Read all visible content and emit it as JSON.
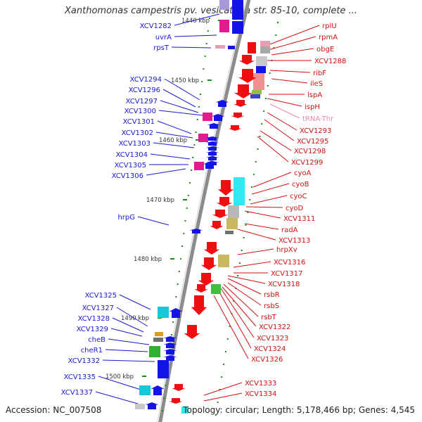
{
  "title": "Xanthomonas campestris pv. vesicatoria str. 85-10, complete ...",
  "accession": "Accession: NC_007508",
  "topology": "Topology: circular; Length: 5,178,466 bp; Genes: 4,545",
  "colors": {
    "left_label": "#1a1ad0",
    "right_label": "#d41010",
    "trna_label": "#e88aa8",
    "left_arrow": "#1414e6",
    "right_arrow": "#ee1010",
    "tick": "#1a8a1a",
    "axis": "#8c8c8c"
  },
  "scale_labels": [
    "1440 kbp",
    "1450 kbp",
    "1460 kbp",
    "1470 kbp",
    "1480 kbp",
    "1490 kbp",
    "1500 kbp"
  ],
  "left_genes": [
    "XCV1282",
    "uvrA",
    "rpsT",
    "XCV1294",
    "XCV1296",
    "XCV1297",
    "XCV1300",
    "XCV1301",
    "XCV1302",
    "XCV1303",
    "XCV1304",
    "XCV1305",
    "XCV1306",
    "hrpG",
    "XCV1325",
    "XCV1327",
    "XCV1328",
    "XCV1329",
    "cheB",
    "cheR1",
    "XCV1332",
    "XCV1335",
    "XCV1337"
  ],
  "right_genes": [
    "rplU",
    "rpmA",
    "obgE",
    "XCV1288",
    "ribF",
    "ileS",
    "lspA",
    "ispH",
    "tRNA-Thr",
    "XCV1293",
    "XCV1295",
    "XCV1298",
    "XCV1299",
    "cyoA",
    "cyoB",
    "cyoC",
    "cyoD",
    "XCV1311",
    "radA",
    "XCV1313",
    "hrpXv",
    "XCV1316",
    "XCV1317",
    "XCV1318",
    "rsbR",
    "rsbS",
    "rsbT",
    "XCV1322",
    "XCV1323",
    "XCV1324",
    "XCV1326",
    "XCV1333",
    "XCV1334"
  ]
}
